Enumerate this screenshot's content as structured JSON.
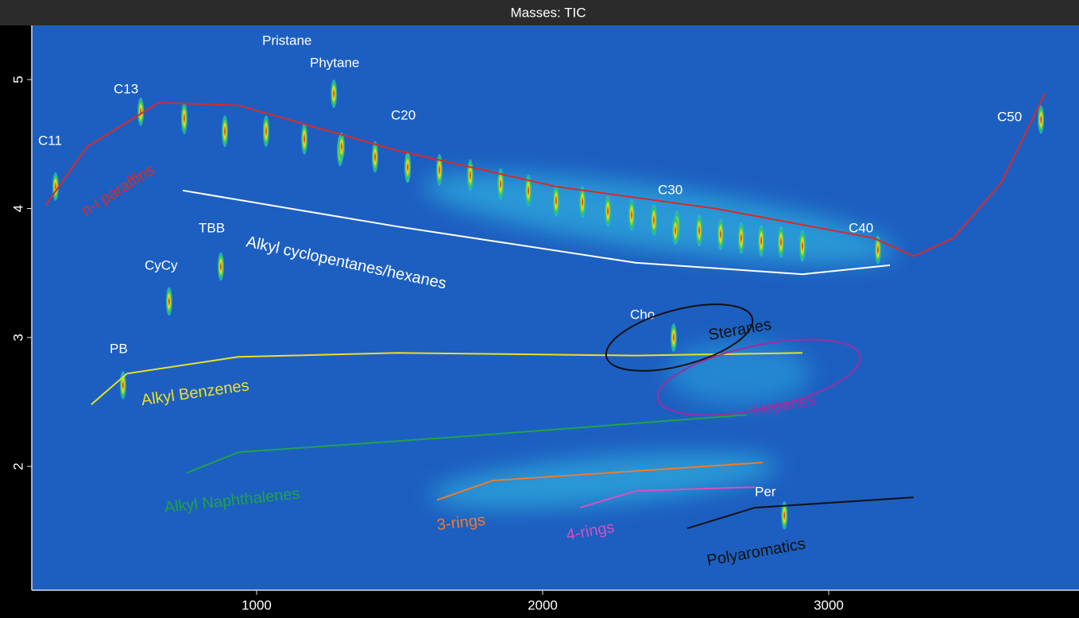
{
  "chart_data": {
    "type": "scatter",
    "title": "Masses: TIC",
    "xlim": [
      214,
      3875
    ],
    "ylim": [
      1.04,
      5.42
    ],
    "xticks": [
      1000,
      2000,
      3000
    ],
    "yticks": [
      2,
      3,
      4,
      5
    ],
    "peaks": {
      "x": [
        747,
        889,
        1033,
        1167,
        1292,
        1414,
        1528,
        1639,
        1747,
        1853,
        1950,
        2047,
        2139,
        2228,
        2311,
        2389,
        2469,
        2547,
        2622,
        2694,
        2764,
        2833,
        2908
      ],
      "values": [
        4.7,
        4.6,
        4.6,
        4.54,
        4.45,
        4.4,
        4.32,
        4.3,
        4.26,
        4.19,
        4.14,
        4.06,
        4.05,
        3.98,
        3.95,
        3.91,
        3.86,
        3.83,
        3.8,
        3.77,
        3.75,
        3.74,
        3.71
      ]
    },
    "labeled_peaks": [
      {
        "label": "C11",
        "x": 297,
        "y": 4.17
      },
      {
        "label": "C13",
        "x": 595,
        "y": 4.75
      },
      {
        "label": "Pristane",
        "x": 1270,
        "y": 4.89
      },
      {
        "label": "Phytane",
        "x": 1297,
        "y": 4.48
      },
      {
        "label": "C20",
        "x": 1528,
        "y": 4.32
      },
      {
        "label": "C30",
        "x": 2464,
        "y": 3.83
      },
      {
        "label": "C40",
        "x": 3172,
        "y": 3.68
      },
      {
        "label": "C50",
        "x": 3742,
        "y": 4.69
      },
      {
        "label": "TBB",
        "x": 875,
        "y": 3.55
      },
      {
        "label": "CyCy",
        "x": 694,
        "y": 3.28
      },
      {
        "label": "PB",
        "x": 533,
        "y": 2.63
      },
      {
        "label": "Cho",
        "x": 2458,
        "y": 3.0
      },
      {
        "label": "Per",
        "x": 2845,
        "y": 1.62
      }
    ],
    "series": [
      {
        "name": "n-i paraffins",
        "color": "#d82a2a",
        "x": [
          264,
          408,
          658,
          936,
          1492,
          2047,
          2603,
          3158,
          3297,
          3436,
          3603,
          3756
        ],
        "values": [
          4.03,
          4.48,
          4.82,
          4.8,
          4.45,
          4.17,
          4.0,
          3.77,
          3.63,
          3.77,
          4.2,
          4.89
        ]
      },
      {
        "name": "Alkyl cyclopentanes/hexanes",
        "color": "#ffffff",
        "x": [
          742,
          1492,
          2325,
          2908,
          3214
        ],
        "values": [
          4.14,
          3.86,
          3.58,
          3.49,
          3.56
        ]
      },
      {
        "name": "Alkyl Benzenes",
        "color": "#e8e02a",
        "x": [
          422,
          547,
          936,
          1492,
          2325,
          2908
        ],
        "values": [
          2.48,
          2.72,
          2.85,
          2.88,
          2.86,
          2.88
        ]
      },
      {
        "name": "Alkyl Naphthalenes",
        "color": "#1fa24a",
        "x": [
          756,
          936,
          1769,
          2714
        ],
        "values": [
          1.95,
          2.11,
          2.24,
          2.4
        ]
      },
      {
        "name": "3-rings",
        "color": "#f07a2a",
        "x": [
          1631,
          1825,
          2769
        ],
        "values": [
          1.74,
          1.89,
          2.03
        ]
      },
      {
        "name": "4-rings",
        "color": "#d94fc0",
        "x": [
          2131,
          2325,
          2742
        ],
        "values": [
          1.68,
          1.81,
          1.84
        ]
      },
      {
        "name": "Polyaromatics",
        "color": "#111111",
        "x": [
          2506,
          2742,
          3297
        ],
        "values": [
          1.52,
          1.68,
          1.76
        ]
      }
    ],
    "regions": [
      {
        "name": "Steranes",
        "color": "#111111"
      },
      {
        "name": "Hopanes",
        "color": "#9b2fa0"
      }
    ]
  }
}
